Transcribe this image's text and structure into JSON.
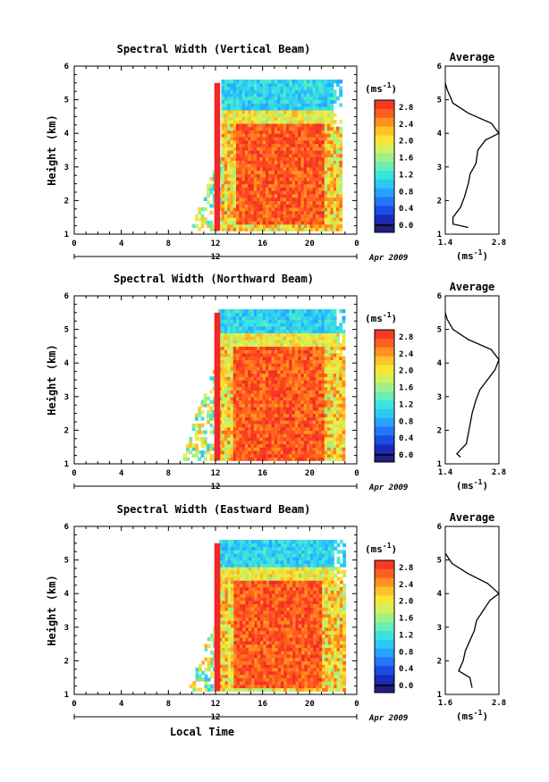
{
  "chart_data": [
    {
      "type": "heatmap",
      "title": "Spectral Width (Vertical Beam)",
      "ylabel": "Height (km)",
      "xlim": [
        0,
        24
      ],
      "ylim": [
        1,
        6
      ],
      "x_ticks": [
        "0",
        "4",
        "8",
        "12",
        "16",
        "20",
        "0"
      ],
      "y_ticks": [
        "1",
        "2",
        "3",
        "4",
        "5",
        "6"
      ],
      "date_bar": {
        "label": "12",
        "date": "Apr 2009"
      },
      "colorbar": {
        "unit": "(ms",
        "unit_exp": "-1",
        "unit_close": ")",
        "range": [
          0,
          3.0
        ],
        "labels": [
          "2.8",
          "2.4",
          "2.0",
          "1.6",
          "1.2",
          "0.8",
          "0.4",
          "0.0"
        ]
      },
      "data_extent": {
        "start_hour": 10.0,
        "end_hour": 22.6,
        "top_km": 5.5
      },
      "core": {
        "start_hour": 13.6,
        "end_hour": 21.0,
        "bottom_km": 1.3,
        "top_km": 4.3
      },
      "average_profile": {
        "title": "Average",
        "xlim": [
          1.4,
          2.8
        ],
        "x_ticks": [
          "1.4",
          "2.8"
        ],
        "xlabel": "(ms",
        "xlabel_exp": "-1",
        "xlabel_close": ")",
        "height_km": [
          1.2,
          1.3,
          1.5,
          1.8,
          2.1,
          2.5,
          2.8,
          3.1,
          3.5,
          3.8,
          4.0,
          4.3,
          4.6,
          4.9,
          5.3,
          5.5
        ],
        "value": [
          2.0,
          1.6,
          1.6,
          1.8,
          1.9,
          2.0,
          2.05,
          2.2,
          2.25,
          2.45,
          2.8,
          2.6,
          2.0,
          1.6,
          1.45,
          1.4
        ]
      }
    },
    {
      "type": "heatmap",
      "title": "Spectral Width (Northward Beam)",
      "ylabel": "Height (km)",
      "xlim": [
        0,
        24
      ],
      "ylim": [
        1,
        6
      ],
      "x_ticks": [
        "0",
        "4",
        "8",
        "12",
        "16",
        "20",
        "0"
      ],
      "y_ticks": [
        "1",
        "2",
        "3",
        "4",
        "5",
        "6"
      ],
      "date_bar": {
        "label": "12",
        "date": "Apr 2009"
      },
      "colorbar": {
        "unit": "(ms",
        "unit_exp": "-1",
        "unit_close": ")",
        "range": [
          0,
          3.0
        ],
        "labels": [
          "2.8",
          "2.4",
          "2.0",
          "1.6",
          "1.2",
          "0.8",
          "0.4",
          "0.0"
        ]
      },
      "data_extent": {
        "start_hour": 9.0,
        "end_hour": 22.8,
        "top_km": 5.5
      },
      "core": {
        "start_hour": 13.4,
        "end_hour": 21.2,
        "bottom_km": 1.1,
        "top_km": 4.5
      },
      "average_profile": {
        "title": "Average",
        "xlim": [
          1.4,
          2.8
        ],
        "x_ticks": [
          "1.4",
          "2.8"
        ],
        "xlabel": "(ms",
        "xlabel_exp": "-1",
        "xlabel_close": ")",
        "height_km": [
          1.2,
          1.3,
          1.6,
          1.9,
          2.2,
          2.5,
          2.9,
          3.2,
          3.5,
          3.8,
          4.1,
          4.4,
          4.7,
          5.0,
          5.3,
          5.5
        ],
        "value": [
          1.8,
          1.7,
          1.95,
          2.0,
          2.05,
          2.1,
          2.2,
          2.3,
          2.5,
          2.7,
          2.8,
          2.6,
          2.0,
          1.6,
          1.45,
          1.4
        ]
      }
    },
    {
      "type": "heatmap",
      "title": "Spectral Width (Eastward Beam)",
      "ylabel": "Height (km)",
      "xlabel": "Local Time",
      "xlim": [
        0,
        24
      ],
      "ylim": [
        1,
        6
      ],
      "x_ticks": [
        "0",
        "4",
        "8",
        "12",
        "16",
        "20",
        "0"
      ],
      "y_ticks": [
        "1",
        "2",
        "3",
        "4",
        "5",
        "6"
      ],
      "date_bar": {
        "label": "12",
        "date": "Apr 2009"
      },
      "colorbar": {
        "unit": "(ms",
        "unit_exp": "-1",
        "unit_close": ")",
        "range": [
          0,
          3.0
        ],
        "labels": [
          "2.8",
          "2.4",
          "2.0",
          "1.6",
          "1.2",
          "0.8",
          "0.4",
          "0.0"
        ]
      },
      "data_extent": {
        "start_hour": 9.8,
        "end_hour": 23.0,
        "top_km": 5.5
      },
      "core": {
        "start_hour": 13.5,
        "end_hour": 21.0,
        "bottom_km": 1.2,
        "top_km": 4.4
      },
      "average_profile": {
        "title": "Average",
        "xlim": [
          1.6,
          2.8
        ],
        "x_ticks": [
          "1.6",
          "2.8"
        ],
        "xlabel": "(ms",
        "xlabel_exp": "-1",
        "xlabel_close": ")",
        "height_km": [
          1.2,
          1.5,
          1.7,
          2.0,
          2.3,
          2.6,
          2.9,
          3.2,
          3.5,
          3.8,
          4.0,
          4.3,
          4.6,
          4.9,
          5.2
        ],
        "value": [
          2.2,
          2.15,
          1.9,
          2.0,
          2.05,
          2.15,
          2.25,
          2.3,
          2.45,
          2.6,
          2.8,
          2.55,
          2.1,
          1.75,
          1.6
        ]
      }
    }
  ]
}
